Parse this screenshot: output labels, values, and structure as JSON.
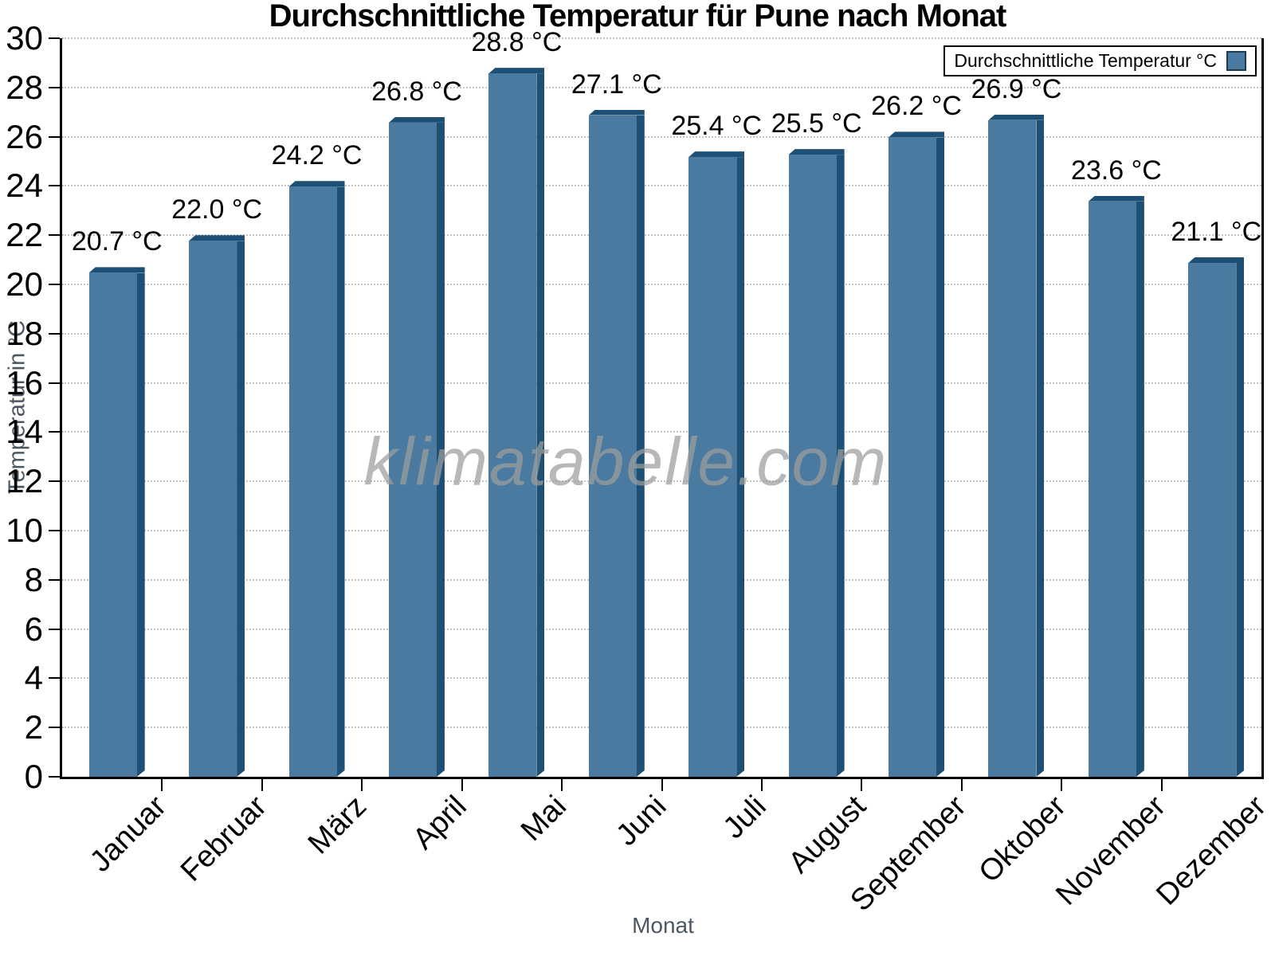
{
  "chart_data": {
    "type": "bar",
    "title": "Durchschnittliche Temperatur für Pune nach Monat",
    "xlabel": "Monat",
    "ylabel": "Temperatur in °C",
    "categories": [
      "Januar",
      "Februar",
      "März",
      "April",
      "Mai",
      "Juni",
      "Juli",
      "August",
      "September",
      "Oktober",
      "November",
      "Dezember"
    ],
    "values": [
      20.7,
      22.0,
      24.2,
      26.8,
      28.8,
      27.1,
      25.4,
      25.5,
      26.2,
      26.9,
      23.6,
      21.1
    ],
    "value_suffix": " °C",
    "ylim": [
      0,
      30
    ],
    "ytick_step": 2,
    "grid": "horizontal-dotted",
    "legend": {
      "label": "Durchschnittliche Temperatur °C",
      "position": "top-right"
    },
    "watermark": "klimatabelle.com",
    "colors": {
      "bar_fill": "#4a7aa0",
      "bar_edge": "#1d5074",
      "legend_swatch_border": "#1d3c52",
      "gridline": "#c3c3c3",
      "axis": "#000000",
      "tick_label_text": "#000000",
      "axis_title_text": "#4d5761",
      "watermark_text": "#9e9e9e"
    }
  }
}
